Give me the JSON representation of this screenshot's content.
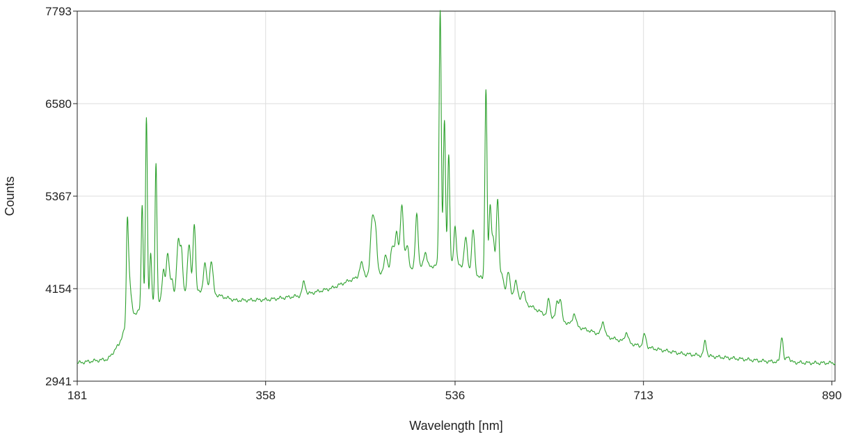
{
  "chart_data": {
    "type": "line",
    "title": "",
    "xlabel": "Wavelength [nm]",
    "ylabel": "Counts",
    "xlim": [
      181,
      893
    ],
    "ylim": [
      2941,
      7793
    ],
    "x_ticks": [
      181,
      358,
      536,
      713,
      890
    ],
    "y_ticks": [
      2941,
      4154,
      5367,
      6580,
      7793
    ],
    "grid": true,
    "legend": "none",
    "series": [
      {
        "color": "#2ca02c",
        "baseline": [
          [
            181,
            3180
          ],
          [
            210,
            3230
          ],
          [
            220,
            3420
          ],
          [
            230,
            3780
          ],
          [
            245,
            3920
          ],
          [
            270,
            4050
          ],
          [
            300,
            4120
          ],
          [
            330,
            4000
          ],
          [
            360,
            4010
          ],
          [
            390,
            4060
          ],
          [
            420,
            4160
          ],
          [
            440,
            4280
          ],
          [
            470,
            4380
          ],
          [
            500,
            4420
          ],
          [
            520,
            4460
          ],
          [
            540,
            4460
          ],
          [
            560,
            4300
          ],
          [
            580,
            4100
          ],
          [
            600,
            3980
          ],
          [
            620,
            3820
          ],
          [
            650,
            3660
          ],
          [
            680,
            3520
          ],
          [
            710,
            3400
          ],
          [
            750,
            3300
          ],
          [
            790,
            3250
          ],
          [
            830,
            3200
          ],
          [
            870,
            3180
          ],
          [
            893,
            3180
          ]
        ],
        "peaks": [
          [
            228,
            1180,
            0.9
          ],
          [
            229.5,
            400,
            1.2
          ],
          [
            231,
            200,
            1.5
          ],
          [
            242,
            1380,
            0.9
          ],
          [
            246,
            2450,
            0.9
          ],
          [
            250,
            700,
            0.9
          ],
          [
            255,
            1830,
            0.9
          ],
          [
            262,
            380,
            1.2
          ],
          [
            266,
            580,
            1.5
          ],
          [
            270,
            230,
            1.2
          ],
          [
            276,
            720,
            1.5
          ],
          [
            279,
            520,
            1.2
          ],
          [
            286,
            650,
            1.5
          ],
          [
            291,
            920,
            1.2
          ],
          [
            301,
            360,
            1.5
          ],
          [
            307,
            420,
            1.5
          ],
          [
            394,
            170,
            1.5
          ],
          [
            448,
            180,
            1.8
          ],
          [
            458,
            680,
            1.5
          ],
          [
            461,
            580,
            1.5
          ],
          [
            471,
            210,
            1.5
          ],
          [
            477,
            300,
            1.5
          ],
          [
            481,
            500,
            1.5
          ],
          [
            486,
            850,
            1.5
          ],
          [
            491,
            300,
            1.5
          ],
          [
            500,
            720,
            1.3
          ],
          [
            508,
            200,
            1.5
          ],
          [
            522,
            3350,
            1.0
          ],
          [
            526,
            1900,
            1.0
          ],
          [
            530,
            1450,
            1.0
          ],
          [
            536,
            520,
            1.2
          ],
          [
            546,
            400,
            1.5
          ],
          [
            553,
            560,
            1.4
          ],
          [
            565,
            2520,
            1.0
          ],
          [
            569,
            1020,
            1.2
          ],
          [
            572,
            600,
            1.2
          ],
          [
            576,
            1180,
            1.3
          ],
          [
            580,
            230,
            1.5
          ],
          [
            586,
            320,
            1.5
          ],
          [
            593,
            240,
            1.5
          ],
          [
            600,
            150,
            1.5
          ],
          [
            624,
            220,
            1.2
          ],
          [
            632,
            230,
            1.2
          ],
          [
            635,
            270,
            1.2
          ],
          [
            648,
            160,
            1.5
          ],
          [
            675,
            180,
            1.5
          ],
          [
            697,
            130,
            1.5
          ],
          [
            714,
            160,
            1.5
          ],
          [
            771,
            190,
            1.3
          ],
          [
            843,
            340,
            1.2
          ],
          [
            849,
            80,
            1.5
          ]
        ]
      }
    ]
  }
}
